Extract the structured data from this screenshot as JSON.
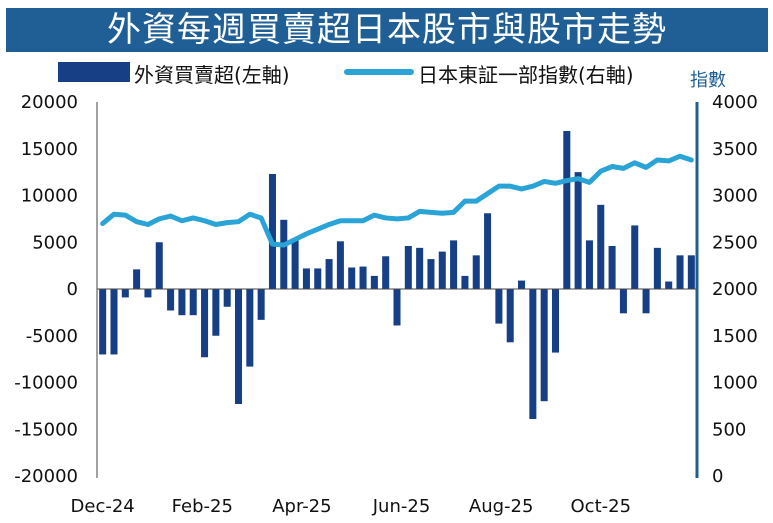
{
  "title": "外資每週買賣超日本股市與股市走勢",
  "legend": {
    "bars_label": "外資買賣超(左軸)",
    "line_label": "日本東証一部指數(右軸)"
  },
  "right_axis_unit": "指數",
  "colors": {
    "bar": "#163f85",
    "line": "#2aa3d6",
    "title_bg": "#1f5f96",
    "axis": "#1f5f96"
  },
  "chart_data": {
    "type": "bar+line",
    "x_labels": [
      "Dec-24",
      "Feb-25",
      "Apr-25",
      "Jun-25",
      "Aug-25",
      "Oct-25"
    ],
    "left_axis": {
      "min": -20000,
      "max": 20000,
      "step": 5000,
      "ticks": [
        "20000",
        "15000",
        "10000",
        "5000",
        "0",
        "-5000",
        "-10000",
        "-15000",
        "-20000"
      ]
    },
    "right_axis": {
      "min": 0,
      "max": 4000,
      "step": 500,
      "ticks": [
        "4000",
        "3500",
        "3000",
        "2500",
        "2000",
        "1500",
        "1000",
        "500",
        "0"
      ]
    },
    "series": [
      {
        "name": "外資買賣超(左軸)",
        "axis": "left",
        "type": "bar",
        "values": [
          -7000,
          -7000,
          -900,
          2100,
          -900,
          5000,
          -2300,
          -2800,
          -2800,
          -7300,
          -5000,
          -1900,
          -12300,
          -8300,
          -3300,
          12300,
          7400,
          5200,
          2200,
          2200,
          3200,
          5100,
          2300,
          2400,
          1400,
          3500,
          -3900,
          4600,
          4400,
          3200,
          4000,
          5200,
          1400,
          3600,
          8100,
          -3700,
          -5700,
          900,
          -13900,
          -12000,
          -6800,
          16900,
          12500,
          5200,
          9000,
          4600,
          -2600,
          6800,
          -2600,
          4400,
          800,
          3600,
          3600
        ]
      },
      {
        "name": "日本東証一部指數(右軸)",
        "axis": "right",
        "type": "line",
        "values": [
          2700,
          2800,
          2790,
          2720,
          2690,
          2750,
          2780,
          2730,
          2760,
          2730,
          2690,
          2710,
          2720,
          2800,
          2760,
          2480,
          2470,
          2530,
          2590,
          2640,
          2690,
          2730,
          2730,
          2730,
          2790,
          2760,
          2750,
          2760,
          2830,
          2820,
          2810,
          2820,
          2940,
          2940,
          3020,
          3100,
          3100,
          3070,
          3100,
          3150,
          3130,
          3160,
          3180,
          3140,
          3260,
          3310,
          3290,
          3350,
          3300,
          3380,
          3370,
          3420,
          3380
        ]
      }
    ]
  }
}
